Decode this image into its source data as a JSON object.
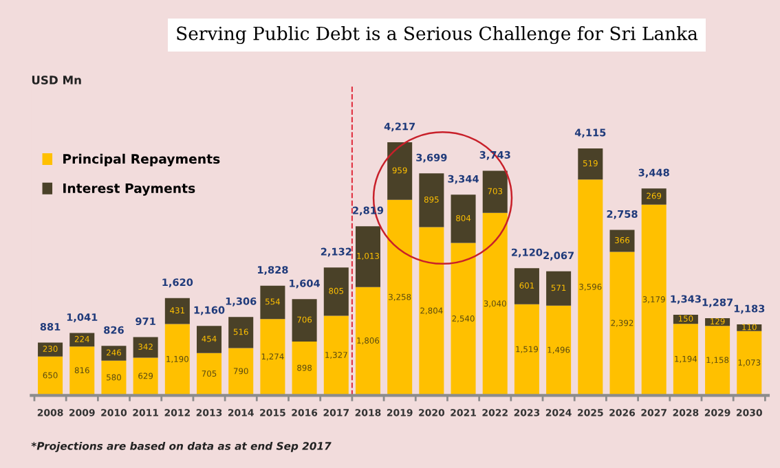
{
  "chart_data": {
    "type": "bar",
    "stacked": true,
    "title": "Serving Public Debt is a Serious Challenge for Sri Lanka",
    "categories": [
      "2008",
      "2009",
      "2010",
      "2011",
      "2012",
      "2013",
      "2014",
      "2015",
      "2016",
      "2017",
      "2018",
      "2019",
      "2020",
      "2021",
      "2022",
      "2023",
      "2024",
      "2025",
      "2026",
      "2027",
      "2028",
      "2029",
      "2030"
    ],
    "series": [
      {
        "name": "Principal Repayments",
        "color": "#ffc000",
        "values": [
          650,
          816,
          580,
          629,
          1190,
          705,
          790,
          1274,
          898,
          1327,
          1806,
          3258,
          2804,
          2540,
          3040,
          1519,
          1496,
          3596,
          2392,
          3179,
          1194,
          1158,
          1073
        ],
        "value_labels": [
          "650",
          "816",
          "580",
          "629",
          "1,190",
          "705",
          "790",
          "1,274",
          "898",
          "1,327",
          "1,806",
          "3,258",
          "2,804",
          "2,540",
          "3,040",
          "1,519",
          "1,496",
          "3,596",
          "2,392",
          "3,179",
          "1,194",
          "1,158",
          "1,073"
        ]
      },
      {
        "name": "Interest Payments",
        "color": "#4a4128",
        "values": [
          230,
          224,
          246,
          342,
          431,
          454,
          516,
          554,
          706,
          805,
          1013,
          959,
          895,
          804,
          703,
          601,
          571,
          519,
          366,
          269,
          150,
          129,
          110
        ],
        "value_labels": [
          "230",
          "224",
          "246",
          "342",
          "431",
          "454",
          "516",
          "554",
          "706",
          "805",
          "1,013",
          "959",
          "895",
          "804",
          "703",
          "601",
          "571",
          "519",
          "366",
          "269",
          "150",
          "129",
          "110"
        ]
      }
    ],
    "totals": [
      "881",
      "1,041",
      "826",
      "971",
      "1,620",
      "1,160",
      "1,306",
      "1,828",
      "1,604",
      "2,132",
      "2,819",
      "4,217",
      "3,699",
      "3,344",
      "3,743",
      "2,120",
      "2,067",
      "4,115",
      "2,758",
      "3,448",
      "1,343",
      "1,287",
      "1,183"
    ],
    "ref_lines": [
      {
        "axis": "x",
        "value": "2018",
        "color": "#e03040",
        "line_style": "dashed"
      }
    ],
    "legend": "top left",
    "annotations": [
      "USD Mn",
      "*Projections are based on data as at end Sep 2017"
    ]
  }
}
